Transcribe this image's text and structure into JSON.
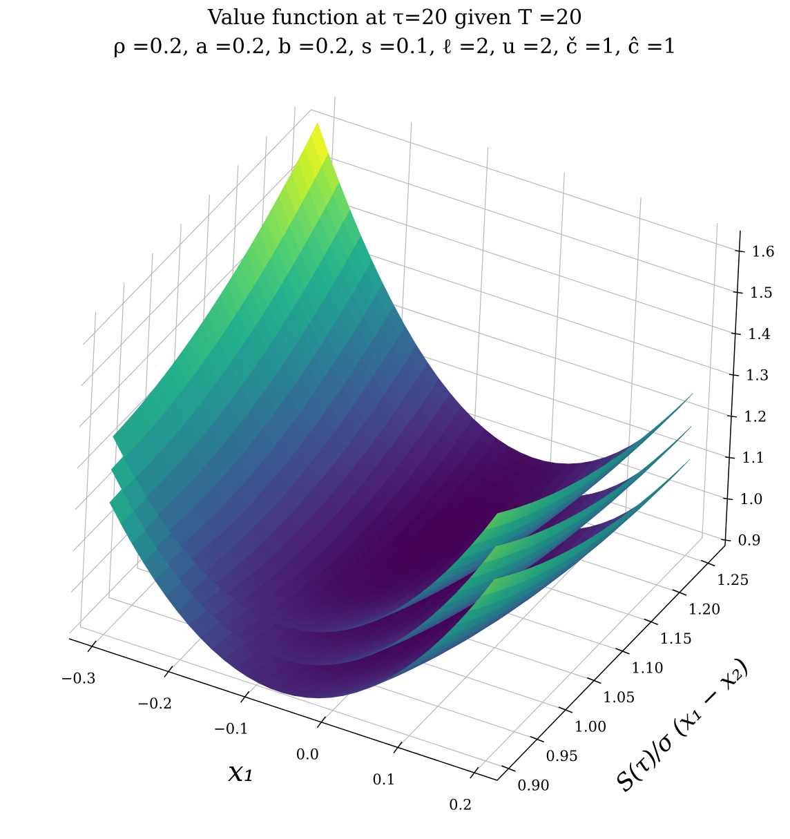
{
  "chart_data": {
    "type": "surface",
    "title": "Value function at τ=20 given T =20",
    "subtitle": "ρ =0.2, a =0.2, b =0.2, s =0.1, ℓ =2, u =2, č =1, ĉ =1",
    "xlabel": "x₁",
    "ylabel": "S(τ)/σ (x₁ − x₂)",
    "zlabel": "",
    "xlim": [
      -0.33,
      0.23
    ],
    "ylim": [
      0.88,
      1.28
    ],
    "zlim": [
      0.887,
      1.65
    ],
    "xticks": [
      "−0.3",
      "−0.2",
      "−0.1",
      "0.0",
      "0.1",
      "0.2"
    ],
    "xtick_values": [
      -0.3,
      -0.2,
      -0.1,
      0.0,
      0.1,
      0.2
    ],
    "yticks": [
      "0.90",
      "0.95",
      "1.00",
      "1.05",
      "1.10",
      "1.15",
      "1.20",
      "1.25"
    ],
    "ytick_values": [
      0.9,
      0.95,
      1.0,
      1.05,
      1.1,
      1.15,
      1.2,
      1.25
    ],
    "zticks": [
      "0.9",
      "1.0",
      "1.1",
      "1.2",
      "1.3",
      "1.4",
      "1.5",
      "1.6"
    ],
    "ztick_values": [
      0.9,
      1.0,
      1.1,
      1.2,
      1.3,
      1.4,
      1.5,
      1.6
    ],
    "grid": true,
    "colormap": "viridis",
    "colormap_stops": [
      "#440154",
      "#482475",
      "#414487",
      "#355f8d",
      "#2a788e",
      "#21918c",
      "#22a884",
      "#44bf70",
      "#7ad151",
      "#bddf26",
      "#fde725"
    ],
    "grid_x": [
      -0.3,
      -0.2,
      -0.1,
      0.0,
      0.1,
      0.2
    ],
    "grid_y": [
      0.9,
      1.075,
      1.25
    ],
    "surfaces": [
      {
        "z": [
          [
            1.207,
            0.991,
            0.895,
            0.919,
            1.063,
            1.327
          ],
          [
            1.277,
            0.997,
            0.848,
            0.828,
            0.939,
            1.179
          ],
          [
            1.47,
            1.12,
            0.91,
            0.84,
            0.91,
            1.12
          ]
        ]
      },
      {
        "z": [
          [
            1.287,
            1.071,
            0.975,
            0.999,
            1.143,
            1.407
          ],
          [
            1.357,
            1.077,
            0.928,
            0.908,
            1.019,
            1.259
          ],
          [
            1.55,
            1.2,
            0.99,
            0.92,
            0.99,
            1.2
          ]
        ]
      },
      {
        "z": [
          [
            1.367,
            1.151,
            1.055,
            1.079,
            1.223,
            1.487
          ],
          [
            1.437,
            1.157,
            1.008,
            0.988,
            1.099,
            1.339
          ],
          [
            1.63,
            1.28,
            1.07,
            1.0,
            1.07,
            1.28
          ]
        ]
      }
    ]
  }
}
